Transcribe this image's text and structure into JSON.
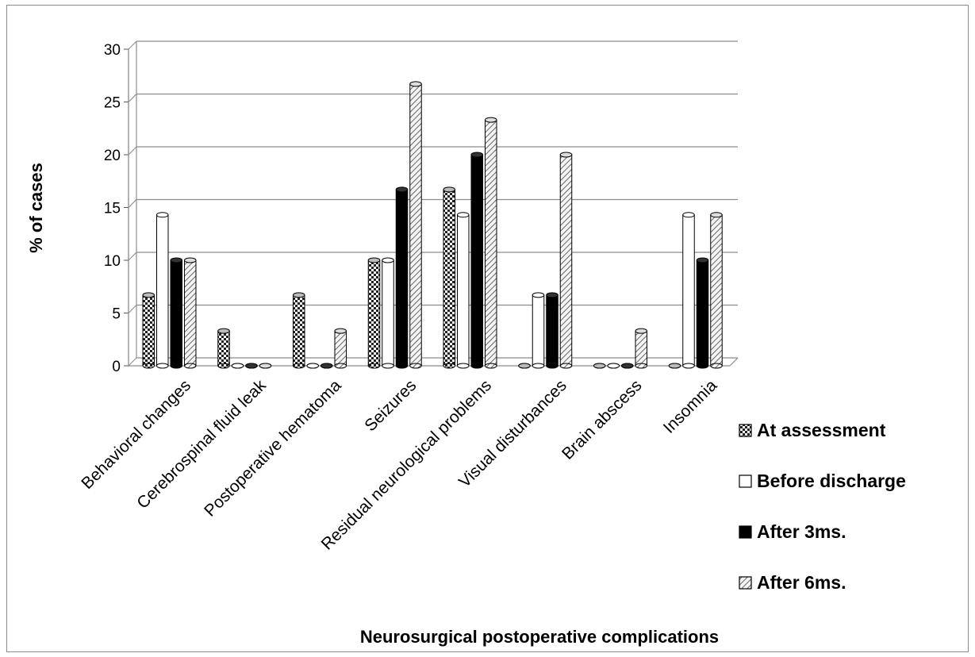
{
  "chart_data": {
    "type": "bar",
    "categories": [
      "Behavioral changes",
      "Cerebrospinal fluid leak",
      "Postoperative hematoma",
      "Seizures",
      "Residual neurological problems",
      "Visual disturbances",
      "Brain abscess",
      "Insomnia"
    ],
    "series": [
      {
        "name": "At assessment",
        "pattern": "checker",
        "values": [
          6.7,
          3.3,
          6.7,
          10,
          16.7,
          0,
          0,
          0
        ]
      },
      {
        "name": "Before discharge",
        "pattern": "white",
        "values": [
          14.3,
          0,
          0,
          10,
          14.3,
          6.7,
          0,
          14.3
        ]
      },
      {
        "name": "After 3ms.",
        "pattern": "black",
        "values": [
          10,
          0,
          0,
          16.7,
          20,
          6.7,
          0,
          10
        ]
      },
      {
        "name": "After 6ms.",
        "pattern": "hatch",
        "values": [
          10,
          0,
          3.3,
          26.7,
          23.3,
          20,
          3.3,
          14.3
        ]
      }
    ],
    "y_ticks": [
      "0",
      "5",
      "10",
      "15",
      "20",
      "25",
      "30"
    ],
    "ylim": [
      0,
      30
    ],
    "ylabel": "% of cases",
    "xlabel": "Neurosurgical postoperative complications",
    "title": "",
    "grid": true,
    "legend_position": "right"
  }
}
